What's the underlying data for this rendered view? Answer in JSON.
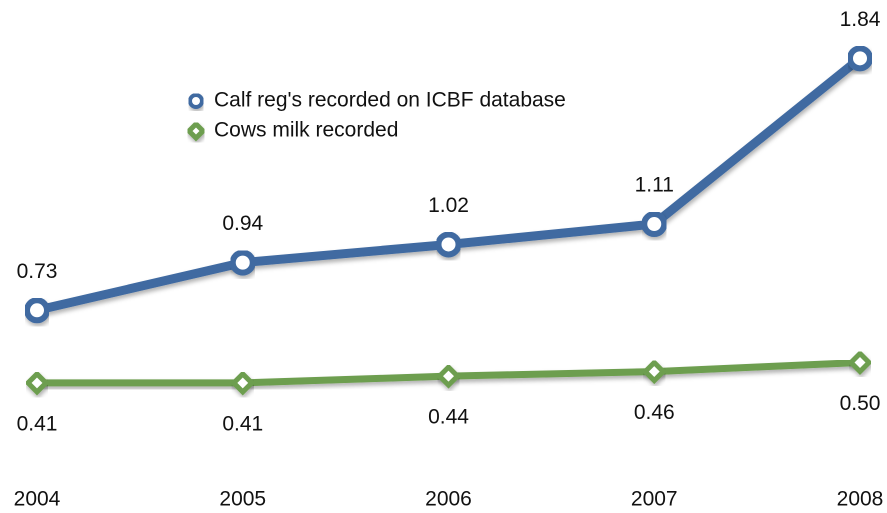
{
  "chart_data": {
    "type": "line",
    "categories": [
      "2004",
      "2005",
      "2006",
      "2007",
      "2008"
    ],
    "series": [
      {
        "name": "Calf reg's recorded on ICBF database",
        "color": "#3f6aa1",
        "marker": "circle",
        "values": [
          0.73,
          0.94,
          1.02,
          1.11,
          1.84
        ],
        "value_labels": [
          "0.73",
          "0.94",
          "1.02",
          "1.11",
          "1.84"
        ]
      },
      {
        "name": "Cows milk recorded",
        "color": "#6d9e4f",
        "marker": "diamond",
        "values": [
          0.41,
          0.41,
          0.44,
          0.46,
          0.5
        ],
        "value_labels": [
          "0.41",
          "0.41",
          "0.44",
          "0.46",
          "0.50"
        ]
      }
    ]
  }
}
